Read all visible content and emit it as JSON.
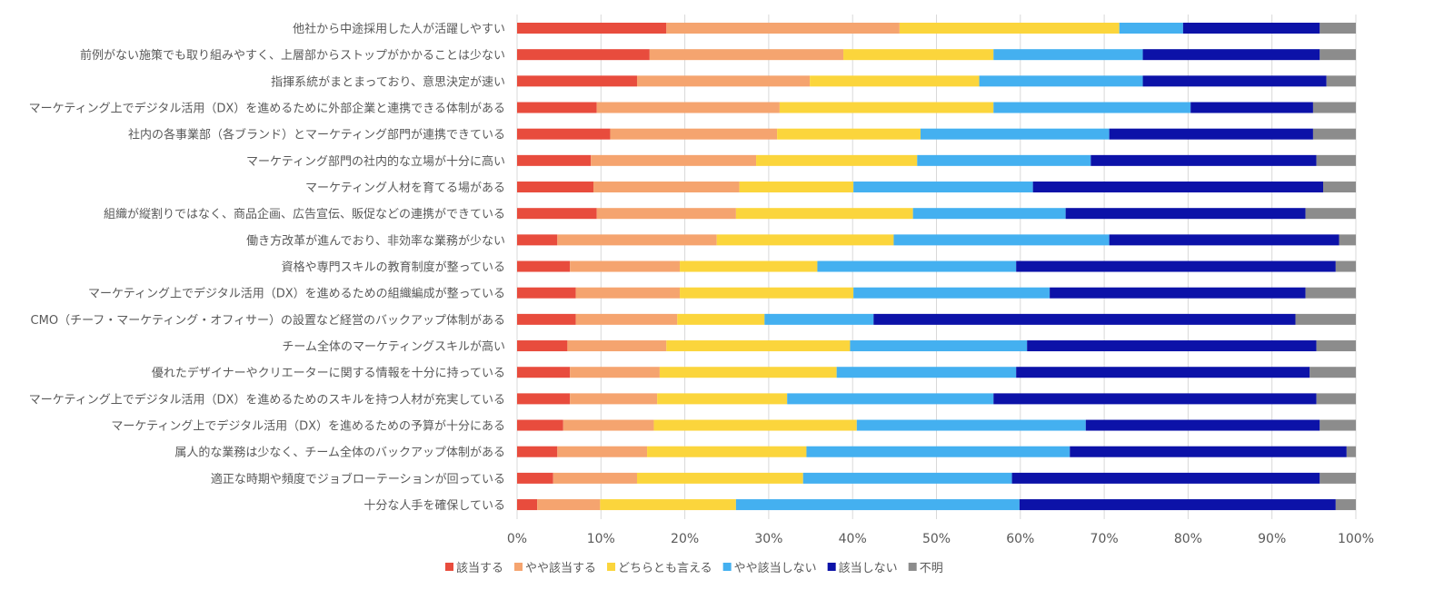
{
  "chart_data": {
    "type": "bar",
    "orientation": "horizontal",
    "stacked": "percent",
    "title": "",
    "xlabel": "",
    "ylabel": "",
    "xlim": [
      0,
      100
    ],
    "grid": true,
    "legend_position": "bottom",
    "x_ticks": [
      "0%",
      "10%",
      "20%",
      "30%",
      "40%",
      "50%",
      "60%",
      "70%",
      "80%",
      "90%",
      "100%"
    ],
    "categories": [
      "他社から中途採用した人が活躍しやすい",
      "前例がない施策でも取り組みやすく、上層部からストップがかかることは少ない",
      "指揮系統がまとまっており、意思決定が速い",
      "マーケティング上でデジタル活用（DX）を進めるために外部企業と連携できる体制がある",
      "社内の各事業部（各ブランド）とマーケティング部門が連携できている",
      "マーケティング部門の社内的な立場が十分に高い",
      "マーケティング人材を育てる場がある",
      "組織が縦割りではなく、商品企画、広告宣伝、販促などの連携ができている",
      "働き方改革が進んでおり、非効率な業務が少ない",
      "資格や専門スキルの教育制度が整っている",
      "マーケティング上でデジタル活用（DX）を進めるための組織編成が整っている",
      "CMO（チーフ・マーケティング・オフィサー）の設置など経営のバックアップ体制がある",
      "チーム全体のマーケティングスキルが高い",
      "優れたデザイナーやクリエーターに関する情報を十分に持っている",
      "マーケティング上でデジタル活用（DX）を進めるためのスキルを持つ人材が充実している",
      "マーケティング上でデジタル活用（DX）を進めるための予算が十分にある",
      "属人的な業務は少なく、チーム全体のバックアップ体制がある",
      "適正な時期や頻度でジョブローテーションが回っている",
      "十分な人手を確保している"
    ],
    "series": [
      {
        "name": "該当する",
        "color": "#E84C3D",
        "values": [
          17.8,
          15.8,
          14.3,
          9.5,
          11.1,
          8.8,
          9.1,
          9.5,
          4.8,
          6.3,
          7.0,
          7.0,
          6.0,
          6.3,
          6.3,
          5.5,
          4.8,
          4.3,
          2.4
        ]
      },
      {
        "name": "やや該当する",
        "color": "#F5A46F",
        "values": [
          27.8,
          23.1,
          20.6,
          21.8,
          19.9,
          19.7,
          17.4,
          16.6,
          19.0,
          13.1,
          12.4,
          12.1,
          11.8,
          10.7,
          10.4,
          10.8,
          10.7,
          10.0,
          7.5
        ]
      },
      {
        "name": "どちらとも言える",
        "color": "#FBD53C",
        "values": [
          26.2,
          17.9,
          20.2,
          25.5,
          17.1,
          19.2,
          13.6,
          21.1,
          21.1,
          16.4,
          20.7,
          10.4,
          21.9,
          21.1,
          15.5,
          24.2,
          19.0,
          19.8,
          16.2
        ]
      },
      {
        "name": "やや該当しない",
        "color": "#44B0F0",
        "values": [
          7.6,
          17.8,
          19.5,
          23.5,
          22.5,
          20.7,
          21.4,
          18.2,
          25.7,
          23.7,
          23.4,
          13.0,
          21.1,
          21.4,
          24.6,
          27.3,
          31.4,
          24.9,
          33.8
        ]
      },
      {
        "name": "該当しない",
        "color": "#0C12A8",
        "values": [
          16.3,
          21.1,
          21.9,
          14.6,
          24.3,
          26.9,
          34.6,
          28.6,
          27.4,
          38.1,
          30.5,
          50.3,
          34.5,
          35.0,
          38.5,
          27.9,
          33.0,
          36.7,
          37.7
        ]
      },
      {
        "name": "不明",
        "color": "#8C8C8C",
        "values": [
          4.3,
          4.3,
          3.5,
          5.1,
          5.1,
          4.7,
          3.9,
          6.0,
          2.0,
          2.4,
          6.0,
          7.2,
          4.7,
          5.5,
          4.7,
          4.3,
          1.1,
          4.3,
          2.4
        ]
      }
    ]
  }
}
